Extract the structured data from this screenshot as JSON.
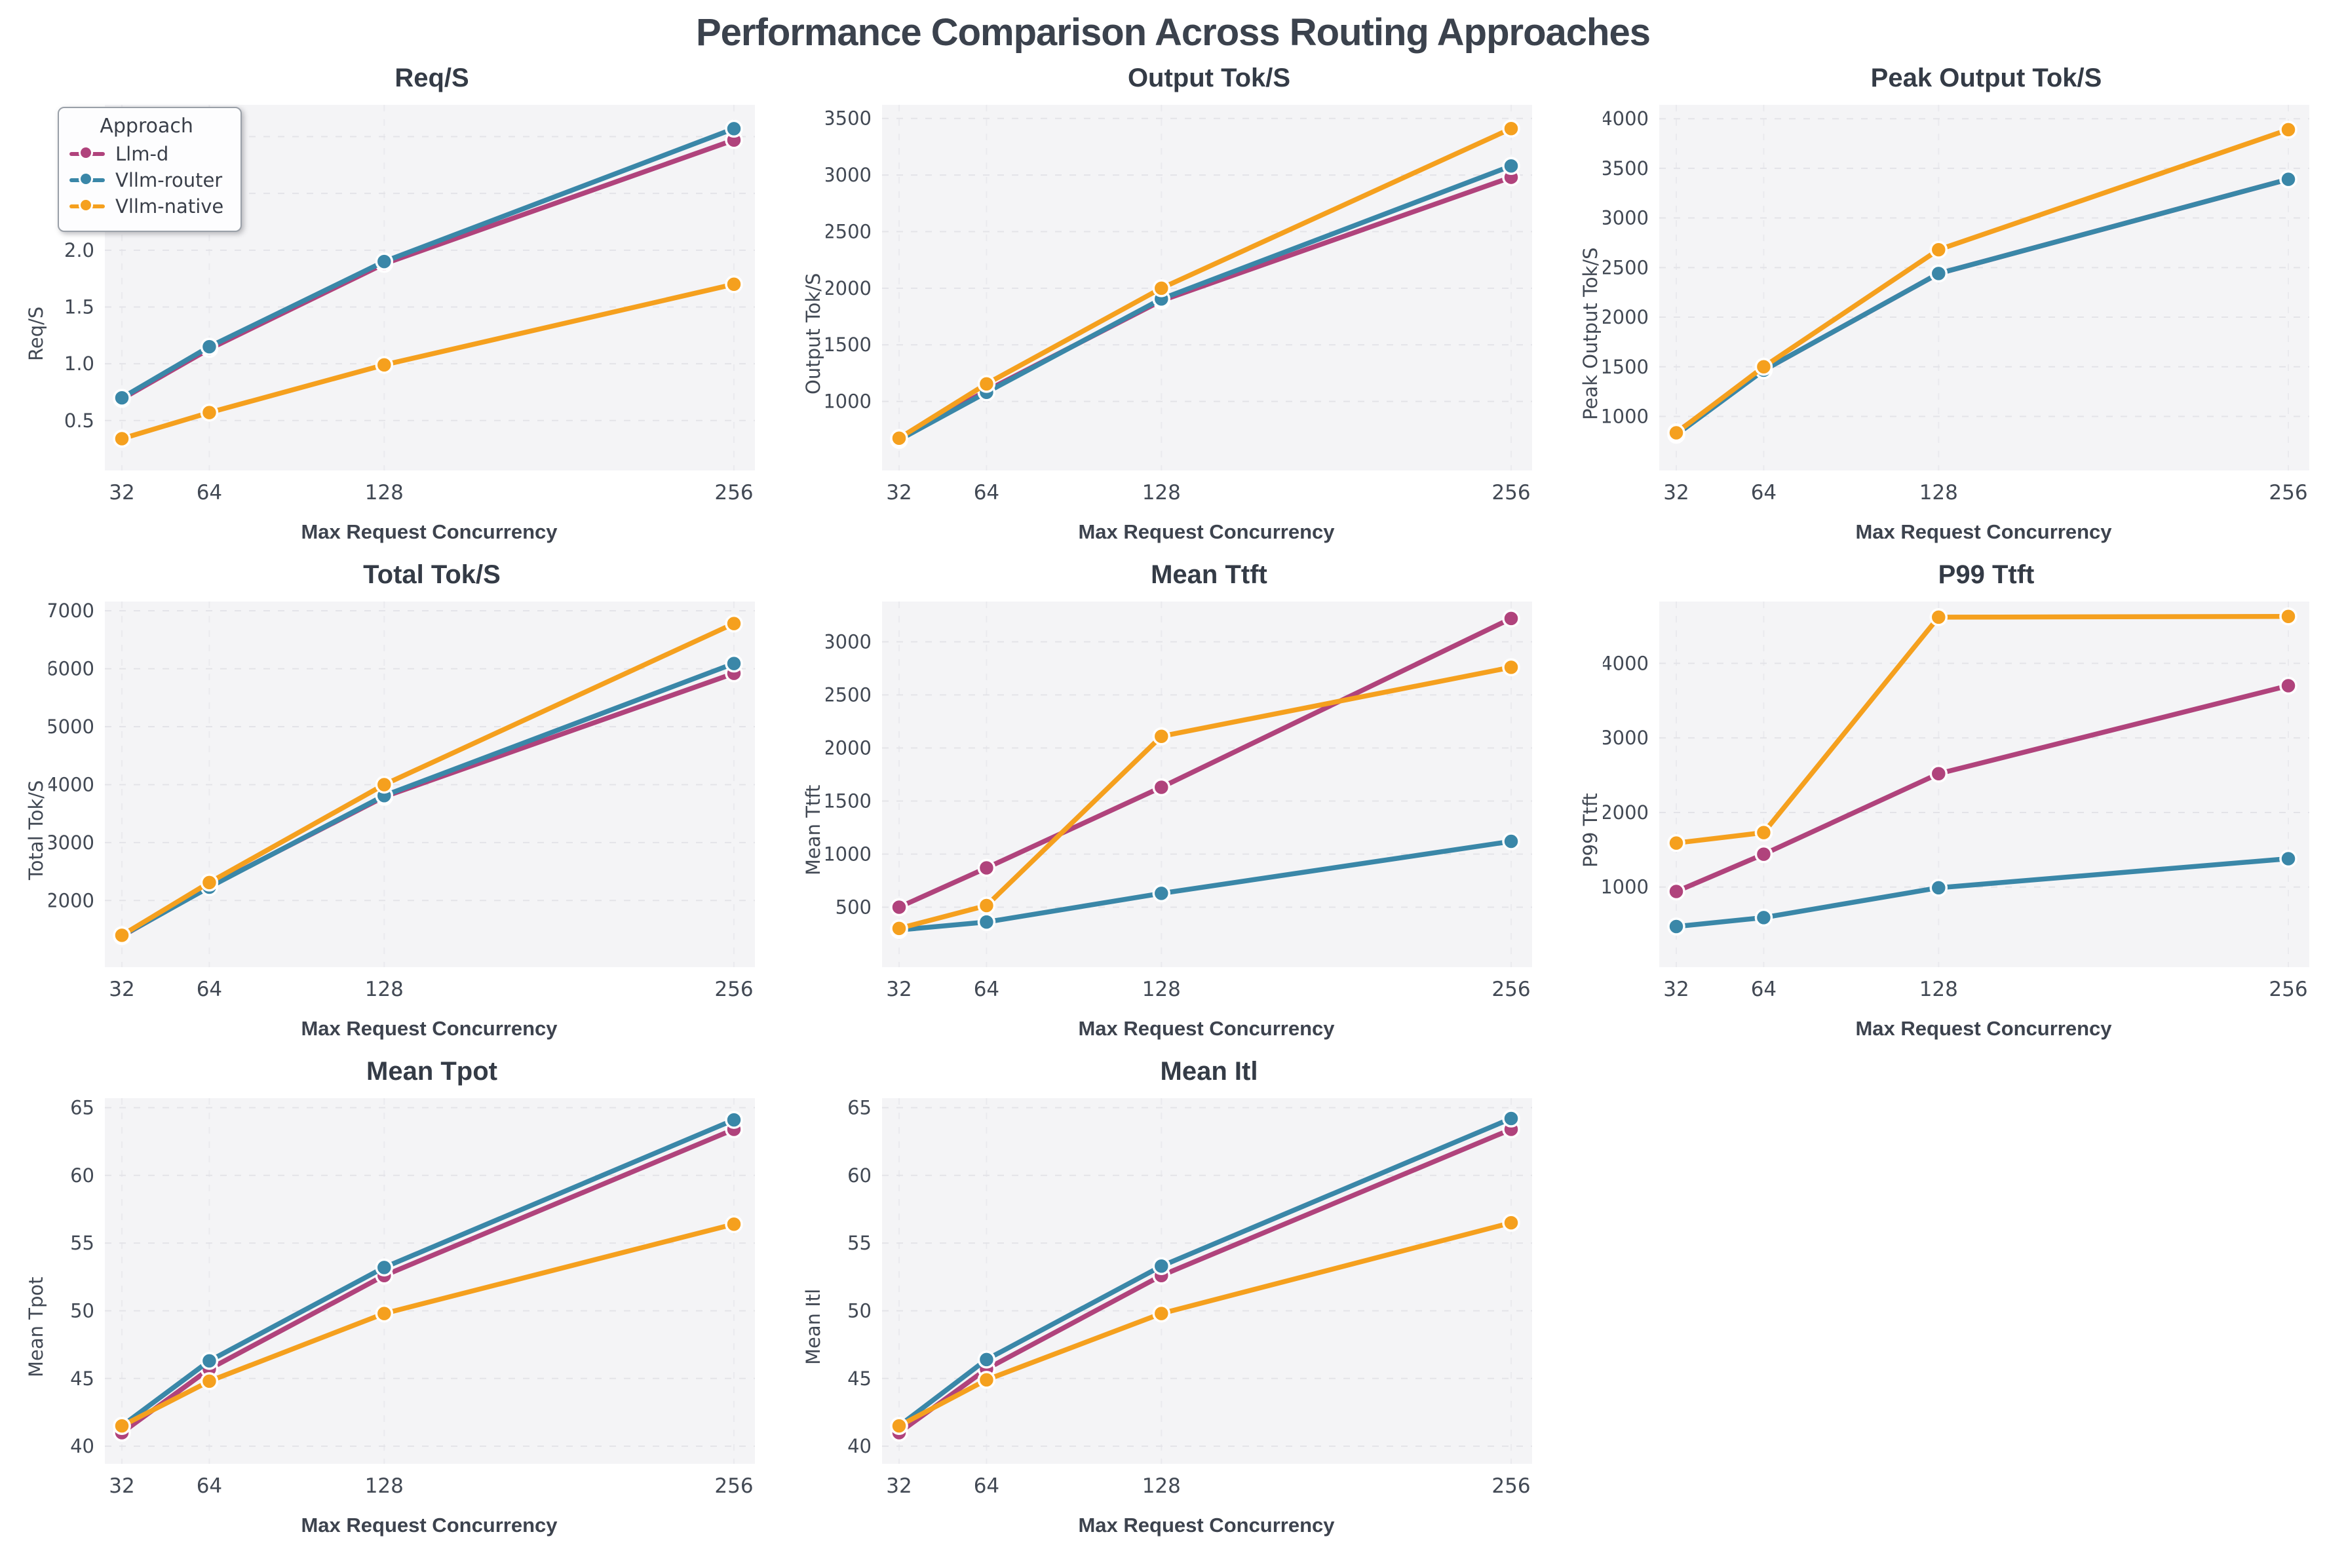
{
  "page_title": "Performance Comparison Across Routing Approaches",
  "colors": {
    "plot_bg": "#f4f4f6",
    "grid_line": "#e3e3e8",
    "title_text": "#3b424d",
    "tick_text": "#424954"
  },
  "legend": {
    "title": "Approach",
    "items": [
      {
        "label": "Llm-d",
        "color": "#b0437c"
      },
      {
        "label": "Vllm-router",
        "color": "#3a87a8"
      },
      {
        "label": "Vllm-native",
        "color": "#f5a01e"
      }
    ]
  },
  "x_axis": {
    "label": "Max Request Concurrency",
    "categories": [
      32,
      64,
      128,
      256
    ],
    "tick_labels": [
      "32",
      "64",
      "128",
      "256"
    ]
  },
  "chart_data": [
    {
      "type": "line",
      "title": "Req/S",
      "ylabel": "Req/S",
      "xlabel": "Max Request Concurrency",
      "ylim": [
        0.06,
        3.28
      ],
      "yticks": [
        0.5,
        1.0,
        1.5,
        2.0,
        2.5,
        3.0
      ],
      "ytick_labels": [
        "0.5",
        "1.0",
        "1.5",
        "2.0",
        "2.5",
        "3.0"
      ],
      "series": [
        {
          "name": "Llm-d",
          "color": "#b0437c",
          "values": [
            0.69,
            1.13,
            1.88,
            2.97
          ]
        },
        {
          "name": "Vllm-router",
          "color": "#3a87a8",
          "values": [
            0.7,
            1.15,
            1.9,
            3.07
          ]
        },
        {
          "name": "Vllm-native",
          "color": "#f5a01e",
          "values": [
            0.34,
            0.57,
            0.99,
            1.7
          ]
        }
      ]
    },
    {
      "type": "line",
      "title": "Output Tok/S",
      "ylabel": "Output Tok/S",
      "xlabel": "Max Request Concurrency",
      "ylim": [
        390,
        3620
      ],
      "yticks": [
        1000,
        1500,
        2000,
        2500,
        3000,
        3500
      ],
      "ytick_labels": [
        "1000",
        "1500",
        "2000",
        "2500",
        "3000",
        "3500"
      ],
      "series": [
        {
          "name": "Llm-d",
          "color": "#b0437c",
          "values": [
            665,
            1095,
            1890,
            2980
          ]
        },
        {
          "name": "Vllm-router",
          "color": "#3a87a8",
          "values": [
            660,
            1080,
            1905,
            3080
          ]
        },
        {
          "name": "Vllm-native",
          "color": "#f5a01e",
          "values": [
            675,
            1155,
            2000,
            3410
          ]
        }
      ]
    },
    {
      "type": "line",
      "title": "Peak Output Tok/S",
      "ylabel": "Peak Output Tok/S",
      "xlabel": "Max Request Concurrency",
      "ylim": [
        455,
        4140
      ],
      "yticks": [
        1000,
        1500,
        2000,
        2500,
        3000,
        3500,
        4000
      ],
      "ytick_labels": [
        "1000",
        "1500",
        "2000",
        "2500",
        "3000",
        "3500",
        "4000"
      ],
      "series": [
        {
          "name": "Llm-d",
          "color": "#b0437c",
          "values": [
            840,
            1465,
            2440,
            3390
          ]
        },
        {
          "name": "Vllm-router",
          "color": "#3a87a8",
          "values": [
            815,
            1465,
            2440,
            3390
          ]
        },
        {
          "name": "Vllm-native",
          "color": "#f5a01e",
          "values": [
            835,
            1500,
            2680,
            3890
          ]
        }
      ]
    },
    {
      "type": "line",
      "title": "Total Tok/S",
      "ylabel": "Total Tok/S",
      "xlabel": "Max Request Concurrency",
      "ylim": [
        850,
        7160
      ],
      "yticks": [
        2000,
        3000,
        4000,
        5000,
        6000,
        7000
      ],
      "ytick_labels": [
        "2000",
        "3000",
        "4000",
        "5000",
        "6000",
        "7000"
      ],
      "series": [
        {
          "name": "Llm-d",
          "color": "#b0437c",
          "values": [
            1385,
            2240,
            3790,
            5920
          ]
        },
        {
          "name": "Vllm-router",
          "color": "#3a87a8",
          "values": [
            1390,
            2230,
            3810,
            6090
          ]
        },
        {
          "name": "Vllm-native",
          "color": "#f5a01e",
          "values": [
            1400,
            2310,
            4000,
            6780
          ]
        }
      ]
    },
    {
      "type": "line",
      "title": "Mean Ttft",
      "ylabel": "Mean Ttft",
      "xlabel": "Max Request Concurrency",
      "ylim": [
        -65,
        3380
      ],
      "yticks": [
        500,
        1000,
        1500,
        2000,
        2500,
        3000
      ],
      "ytick_labels": [
        "500",
        "1000",
        "1500",
        "2000",
        "2500",
        "3000"
      ],
      "series": [
        {
          "name": "Llm-d",
          "color": "#b0437c",
          "values": [
            500,
            870,
            1630,
            3220
          ]
        },
        {
          "name": "Vllm-router",
          "color": "#3a87a8",
          "values": [
            285,
            360,
            630,
            1120
          ]
        },
        {
          "name": "Vllm-native",
          "color": "#f5a01e",
          "values": [
            300,
            515,
            2110,
            2760
          ]
        }
      ]
    },
    {
      "type": "line",
      "title": "P99 Ttft",
      "ylabel": "P99 Ttft",
      "xlabel": "Max Request Concurrency",
      "ylim": [
        -75,
        4830
      ],
      "yticks": [
        1000,
        2000,
        3000,
        4000
      ],
      "ytick_labels": [
        "1000",
        "2000",
        "3000",
        "4000"
      ],
      "series": [
        {
          "name": "Llm-d",
          "color": "#b0437c",
          "values": [
            940,
            1440,
            2520,
            3700
          ]
        },
        {
          "name": "Vllm-router",
          "color": "#3a87a8",
          "values": [
            470,
            590,
            990,
            1380
          ]
        },
        {
          "name": "Vllm-native",
          "color": "#f5a01e",
          "values": [
            1590,
            1730,
            4620,
            4630
          ]
        }
      ]
    },
    {
      "type": "line",
      "title": "Mean Tpot",
      "ylabel": "Mean Tpot",
      "xlabel": "Max Request Concurrency",
      "ylim": [
        38.7,
        65.7
      ],
      "yticks": [
        40,
        45,
        50,
        55,
        60,
        65
      ],
      "ytick_labels": [
        "40",
        "45",
        "50",
        "55",
        "60",
        "65"
      ],
      "series": [
        {
          "name": "Llm-d",
          "color": "#b0437c",
          "values": [
            41.0,
            45.7,
            52.6,
            63.4
          ]
        },
        {
          "name": "Vllm-router",
          "color": "#3a87a8",
          "values": [
            41.5,
            46.3,
            53.2,
            64.1
          ]
        },
        {
          "name": "Vllm-native",
          "color": "#f5a01e",
          "values": [
            41.5,
            44.8,
            49.8,
            56.4
          ]
        }
      ]
    },
    {
      "type": "line",
      "title": "Mean Itl",
      "ylabel": "Mean Itl",
      "xlabel": "Max Request Concurrency",
      "ylim": [
        38.7,
        65.7
      ],
      "yticks": [
        40,
        45,
        50,
        55,
        60,
        65
      ],
      "ytick_labels": [
        "40",
        "45",
        "50",
        "55",
        "60",
        "65"
      ],
      "series": [
        {
          "name": "Llm-d",
          "color": "#b0437c",
          "values": [
            41.0,
            45.7,
            52.6,
            63.4
          ]
        },
        {
          "name": "Vllm-router",
          "color": "#3a87a8",
          "values": [
            41.5,
            46.4,
            53.3,
            64.2
          ]
        },
        {
          "name": "Vllm-native",
          "color": "#f5a01e",
          "values": [
            41.5,
            44.9,
            49.8,
            56.5
          ]
        }
      ]
    }
  ]
}
